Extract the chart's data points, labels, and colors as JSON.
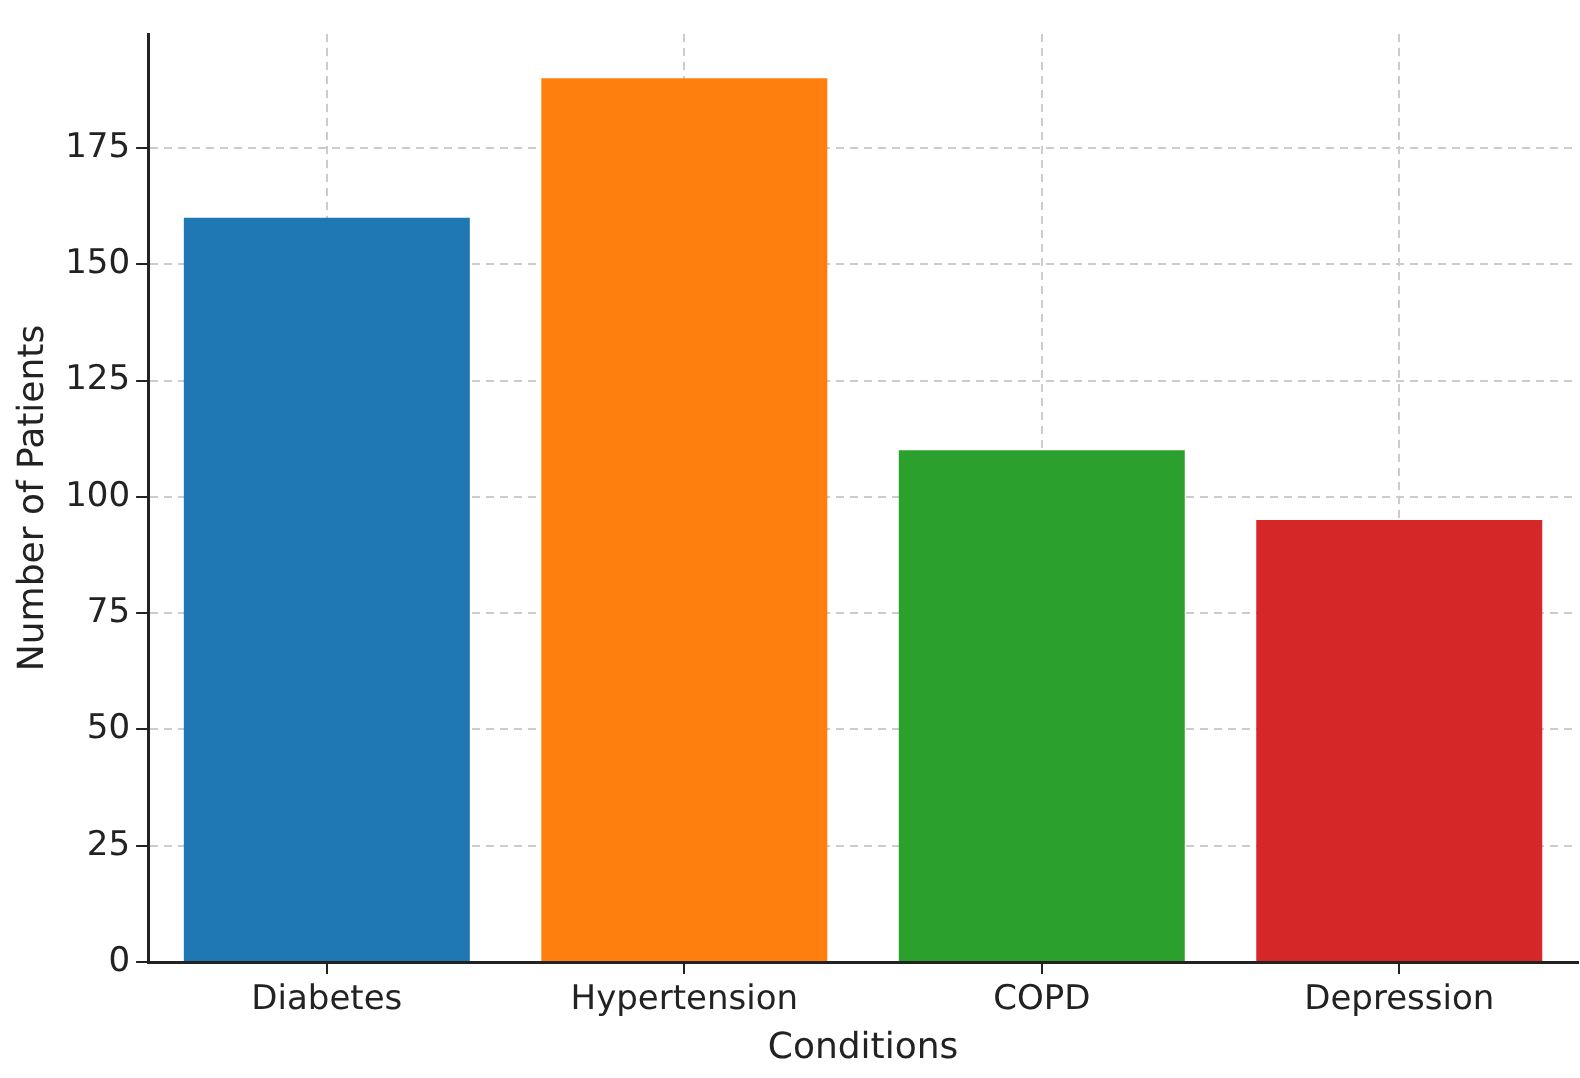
{
  "chart_data": {
    "type": "bar",
    "xlabel": "Conditions",
    "ylabel": "Number of Patients",
    "categories": [
      "Diabetes",
      "Hypertension",
      "COPD",
      "Depression"
    ],
    "values": [
      160,
      190,
      110,
      95
    ],
    "colors": [
      "#1f77b4",
      "#ff7f0e",
      "#2ca02c",
      "#d62728"
    ],
    "ylim": [
      0,
      199.5
    ],
    "yticks": [
      0,
      25,
      50,
      75,
      100,
      125,
      150,
      175
    ],
    "grid": true
  }
}
